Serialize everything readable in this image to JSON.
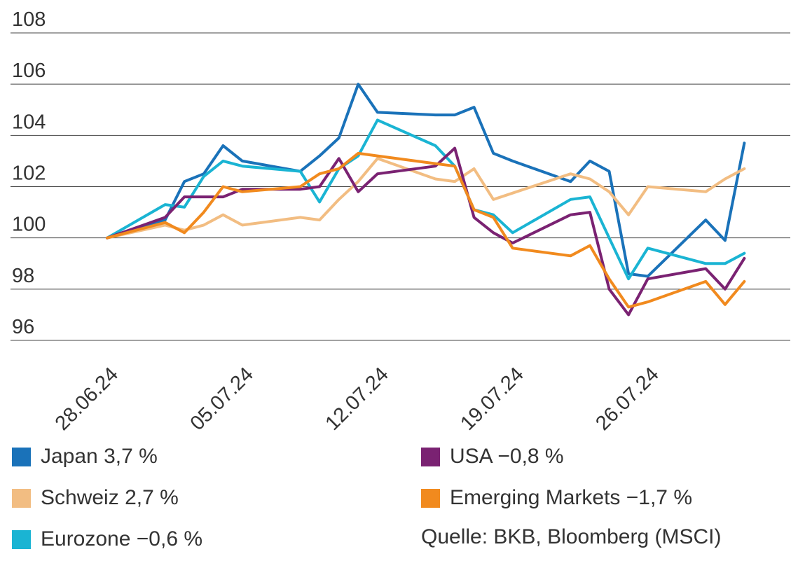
{
  "chart_data": {
    "type": "line",
    "ylim": [
      96,
      108
    ],
    "yticks": [
      96,
      98,
      100,
      102,
      104,
      106,
      108
    ],
    "xlim": [
      "2024-06-28",
      "2024-08-01"
    ],
    "xtick_dates": [
      "2024-06-28",
      "2024-07-05",
      "2024-07-12",
      "2024-07-19",
      "2024-07-26"
    ],
    "xtick_labels": [
      "28.06.24",
      "05.07.24",
      "12.07.24",
      "19.07.24",
      "26.07.24"
    ],
    "grid": "horizontal",
    "legend_position": "bottom",
    "source": "Quelle: BKB, Bloomberg (MSCI)",
    "series": [
      {
        "name": "Japan",
        "legend_value": "3,7 %",
        "color": "#1a72b9",
        "points": [
          [
            "2024-06-28",
            100.0
          ],
          [
            "2024-07-01",
            100.7
          ],
          [
            "2024-07-02",
            102.2
          ],
          [
            "2024-07-03",
            102.5
          ],
          [
            "2024-07-04",
            103.6
          ],
          [
            "2024-07-05",
            103.0
          ],
          [
            "2024-07-08",
            102.6
          ],
          [
            "2024-07-09",
            103.2
          ],
          [
            "2024-07-10",
            103.9
          ],
          [
            "2024-07-11",
            106.0
          ],
          [
            "2024-07-12",
            104.9
          ],
          [
            "2024-07-15",
            104.8
          ],
          [
            "2024-07-16",
            104.8
          ],
          [
            "2024-07-17",
            105.1
          ],
          [
            "2024-07-18",
            103.3
          ],
          [
            "2024-07-19",
            103.0
          ],
          [
            "2024-07-22",
            102.2
          ],
          [
            "2024-07-23",
            103.0
          ],
          [
            "2024-07-24",
            102.6
          ],
          [
            "2024-07-25",
            98.6
          ],
          [
            "2024-07-26",
            98.5
          ],
          [
            "2024-07-29",
            100.7
          ],
          [
            "2024-07-30",
            99.9
          ],
          [
            "2024-07-31",
            103.7
          ]
        ]
      },
      {
        "name": "Schweiz",
        "legend_value": "2,7 %",
        "color": "#f2bd82",
        "points": [
          [
            "2024-06-28",
            100.0
          ],
          [
            "2024-07-01",
            100.5
          ],
          [
            "2024-07-02",
            100.3
          ],
          [
            "2024-07-03",
            100.5
          ],
          [
            "2024-07-04",
            100.9
          ],
          [
            "2024-07-05",
            100.5
          ],
          [
            "2024-07-08",
            100.8
          ],
          [
            "2024-07-09",
            100.7
          ],
          [
            "2024-07-10",
            101.5
          ],
          [
            "2024-07-11",
            102.2
          ],
          [
            "2024-07-12",
            103.1
          ],
          [
            "2024-07-15",
            102.3
          ],
          [
            "2024-07-16",
            102.2
          ],
          [
            "2024-07-17",
            102.7
          ],
          [
            "2024-07-18",
            101.5
          ],
          [
            "2024-07-22",
            102.5
          ],
          [
            "2024-07-23",
            102.3
          ],
          [
            "2024-07-24",
            101.8
          ],
          [
            "2024-07-25",
            100.9
          ],
          [
            "2024-07-26",
            102.0
          ],
          [
            "2024-07-29",
            101.8
          ],
          [
            "2024-07-30",
            102.3
          ],
          [
            "2024-07-31",
            102.7
          ]
        ]
      },
      {
        "name": "Eurozone",
        "legend_value": "−0,6 %",
        "color": "#1ab4d3",
        "points": [
          [
            "2024-06-28",
            100.0
          ],
          [
            "2024-07-01",
            101.3
          ],
          [
            "2024-07-02",
            101.2
          ],
          [
            "2024-07-03",
            102.4
          ],
          [
            "2024-07-04",
            103.0
          ],
          [
            "2024-07-05",
            102.8
          ],
          [
            "2024-07-08",
            102.6
          ],
          [
            "2024-07-09",
            101.4
          ],
          [
            "2024-07-10",
            102.7
          ],
          [
            "2024-07-11",
            103.2
          ],
          [
            "2024-07-12",
            104.6
          ],
          [
            "2024-07-15",
            103.6
          ],
          [
            "2024-07-16",
            102.8
          ],
          [
            "2024-07-17",
            101.1
          ],
          [
            "2024-07-18",
            100.9
          ],
          [
            "2024-07-19",
            100.2
          ],
          [
            "2024-07-22",
            101.5
          ],
          [
            "2024-07-23",
            101.6
          ],
          [
            "2024-07-24",
            100.0
          ],
          [
            "2024-07-25",
            98.4
          ],
          [
            "2024-07-26",
            99.6
          ],
          [
            "2024-07-29",
            99.0
          ],
          [
            "2024-07-30",
            99.0
          ],
          [
            "2024-07-31",
            99.4
          ]
        ]
      },
      {
        "name": "USA",
        "legend_value": "−0,8 %",
        "color": "#7a2272",
        "points": [
          [
            "2024-06-28",
            100.0
          ],
          [
            "2024-07-01",
            100.8
          ],
          [
            "2024-07-02",
            101.6
          ],
          [
            "2024-07-03",
            101.6
          ],
          [
            "2024-07-04",
            101.6
          ],
          [
            "2024-07-05",
            101.9
          ],
          [
            "2024-07-08",
            101.9
          ],
          [
            "2024-07-09",
            102.0
          ],
          [
            "2024-07-10",
            103.1
          ],
          [
            "2024-07-11",
            101.8
          ],
          [
            "2024-07-12",
            102.5
          ],
          [
            "2024-07-15",
            102.8
          ],
          [
            "2024-07-16",
            103.5
          ],
          [
            "2024-07-17",
            100.8
          ],
          [
            "2024-07-18",
            100.2
          ],
          [
            "2024-07-19",
            99.8
          ],
          [
            "2024-07-22",
            100.9
          ],
          [
            "2024-07-23",
            101.0
          ],
          [
            "2024-07-24",
            98.0
          ],
          [
            "2024-07-25",
            97.0
          ],
          [
            "2024-07-26",
            98.4
          ],
          [
            "2024-07-29",
            98.8
          ],
          [
            "2024-07-30",
            98.0
          ],
          [
            "2024-07-31",
            99.2
          ]
        ]
      },
      {
        "name": "Emerging Markets",
        "legend_value": "−1,7 %",
        "color": "#f18a1e",
        "points": [
          [
            "2024-06-28",
            100.0
          ],
          [
            "2024-07-01",
            100.6
          ],
          [
            "2024-07-02",
            100.2
          ],
          [
            "2024-07-03",
            101.0
          ],
          [
            "2024-07-04",
            102.0
          ],
          [
            "2024-07-05",
            101.8
          ],
          [
            "2024-07-08",
            102.0
          ],
          [
            "2024-07-09",
            102.5
          ],
          [
            "2024-07-10",
            102.7
          ],
          [
            "2024-07-11",
            103.3
          ],
          [
            "2024-07-12",
            103.2
          ],
          [
            "2024-07-15",
            102.9
          ],
          [
            "2024-07-16",
            102.8
          ],
          [
            "2024-07-17",
            101.1
          ],
          [
            "2024-07-18",
            100.8
          ],
          [
            "2024-07-19",
            99.6
          ],
          [
            "2024-07-22",
            99.3
          ],
          [
            "2024-07-23",
            99.7
          ],
          [
            "2024-07-24",
            98.4
          ],
          [
            "2024-07-25",
            97.3
          ],
          [
            "2024-07-26",
            97.5
          ],
          [
            "2024-07-29",
            98.3
          ],
          [
            "2024-07-30",
            97.4
          ],
          [
            "2024-07-31",
            98.3
          ]
        ]
      }
    ]
  }
}
